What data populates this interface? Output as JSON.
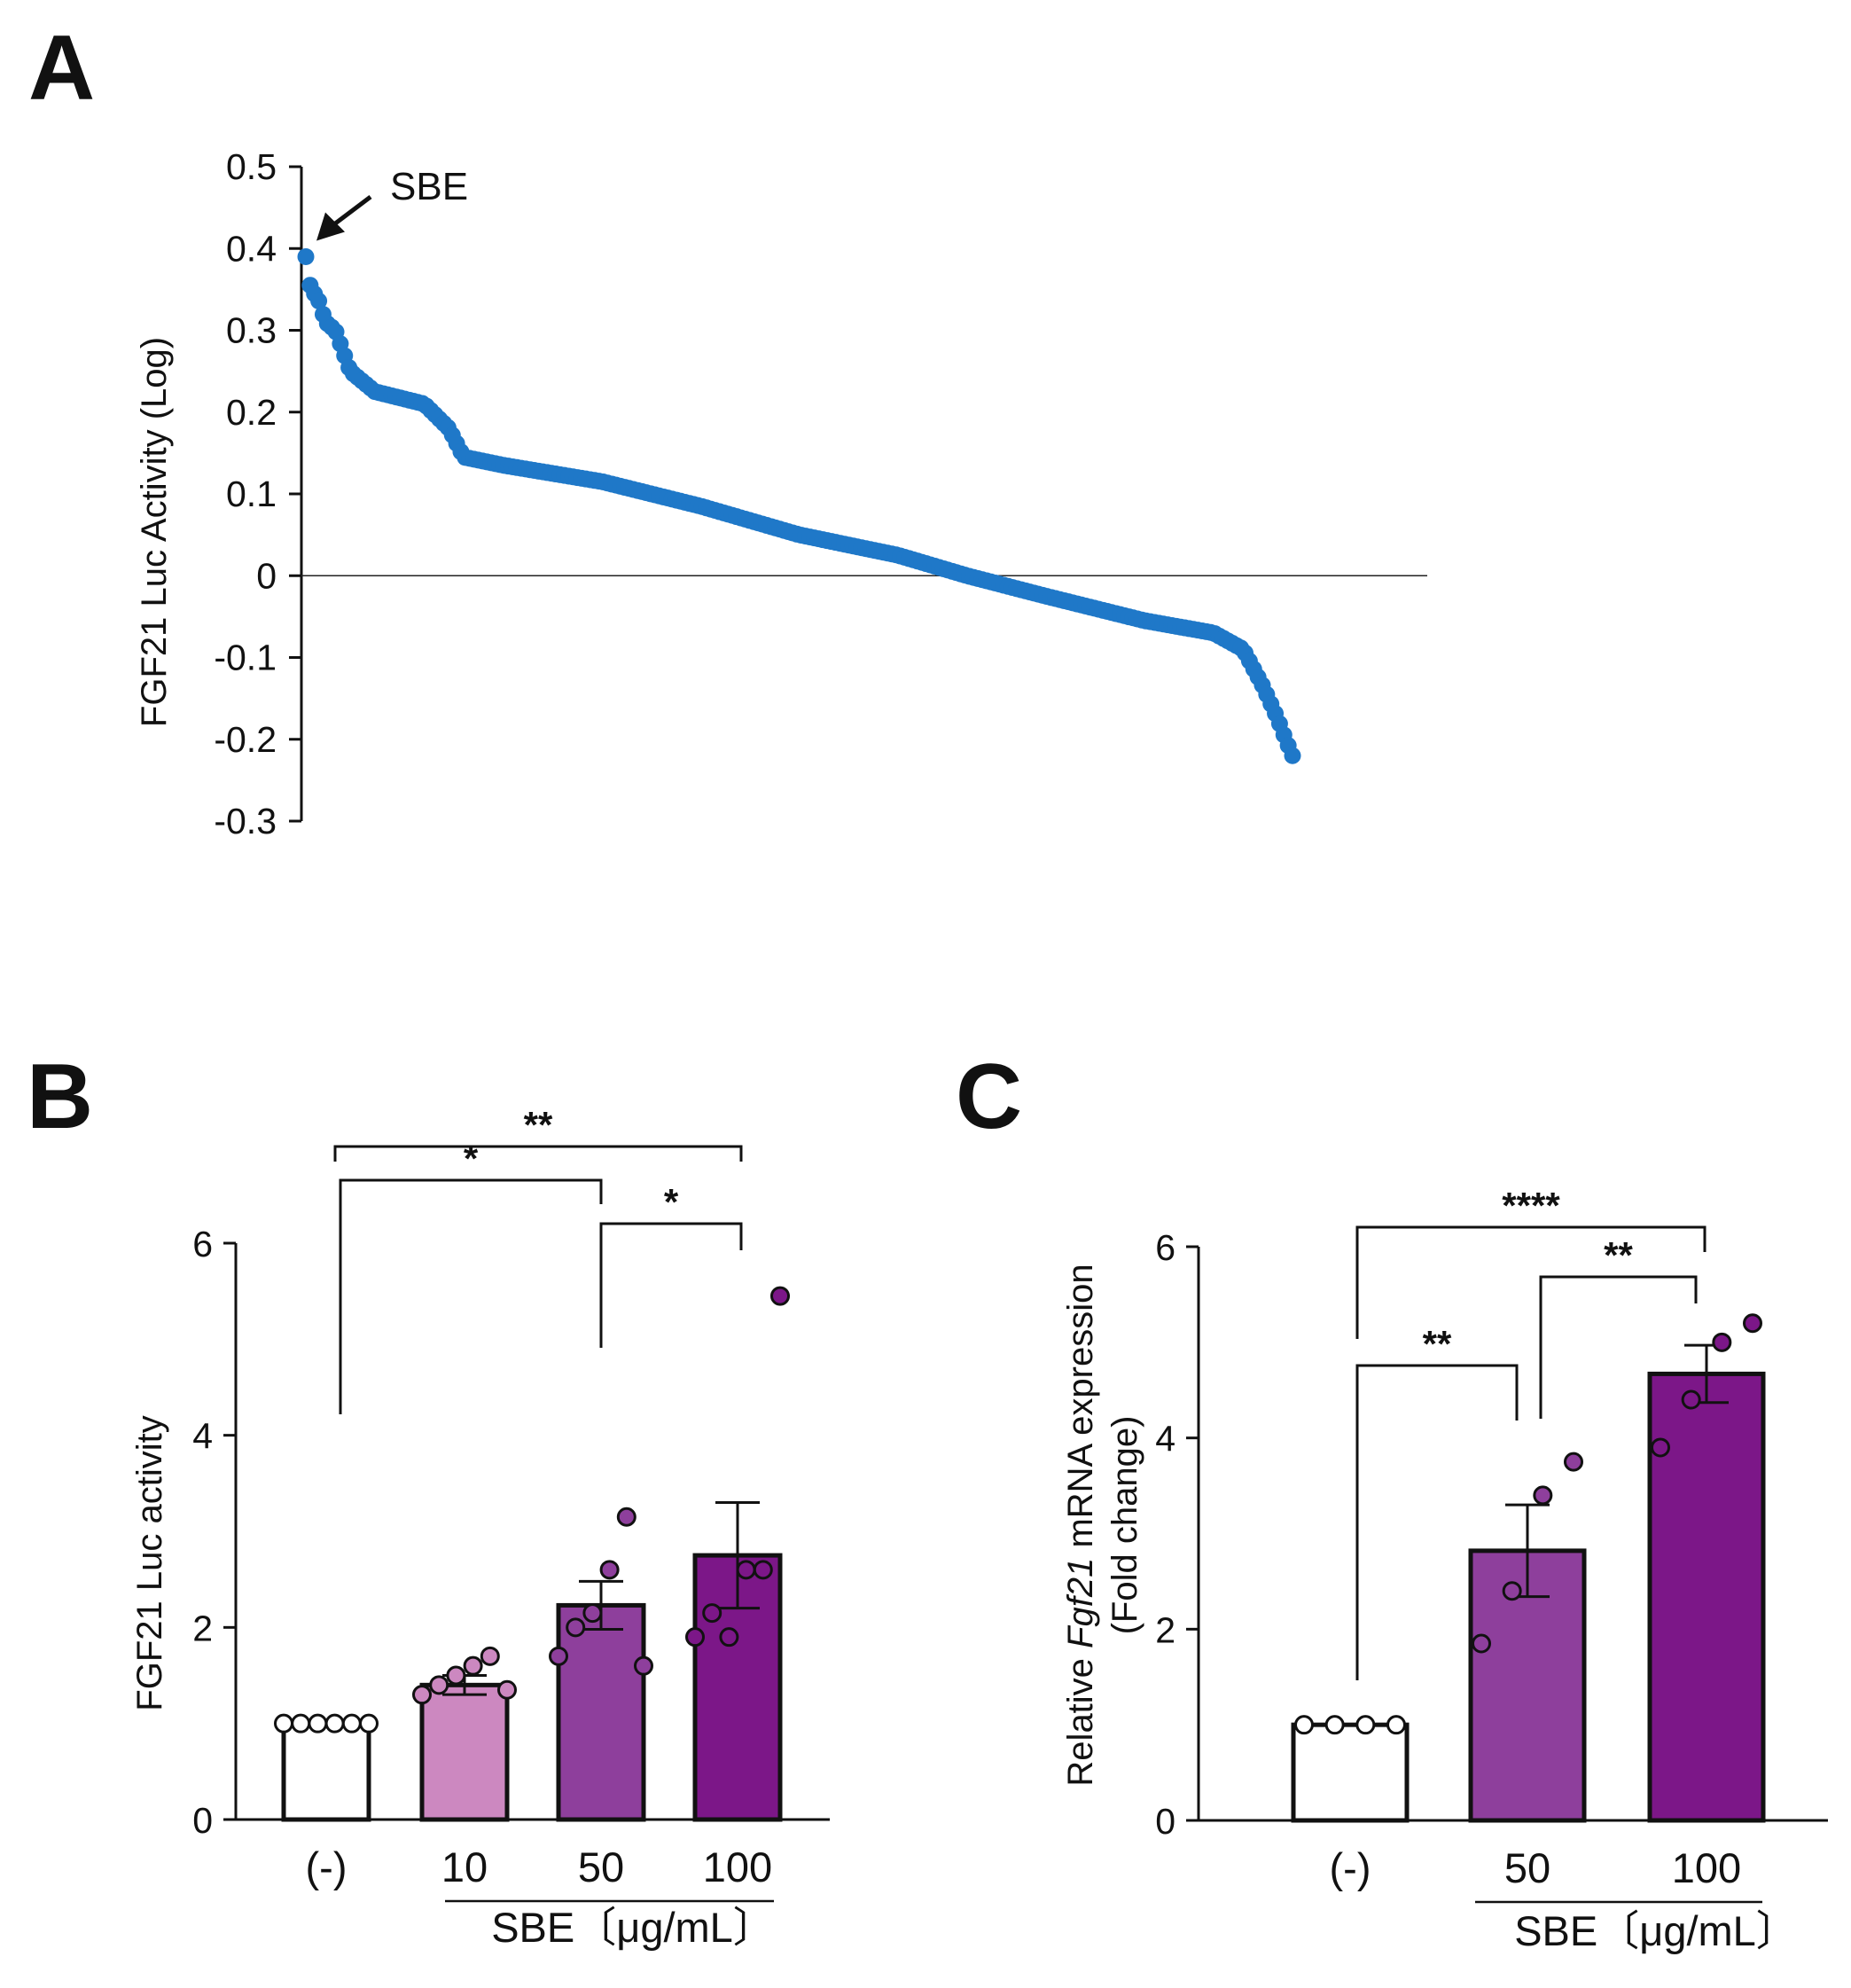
{
  "colors": {
    "dot_blue": "#1f78c8",
    "bar_white": "#ffffff",
    "bar_10": "#cc88c0",
    "bar_50": "#8e3f9c",
    "bar_100": "#7c1788",
    "outline": "#111111"
  },
  "chart_data": [
    {
      "panel": "A",
      "type": "scatter",
      "ylabel": "FGF21 Luc Activity (Log)",
      "ylim": [
        -0.3,
        0.5
      ],
      "yticks": [
        0.5,
        0.4,
        0.3,
        0.2,
        0.1,
        0,
        -0.1,
        -0.2,
        -0.3
      ],
      "ytick_labels": [
        "0.5",
        "0.4",
        "0.3",
        "0.2",
        "0.1",
        "0",
        "-0.1",
        "-0.2",
        "-0.3"
      ],
      "point_count": 230,
      "sorted_profile": [
        [
          0,
          0.39
        ],
        [
          0.005,
          0.35
        ],
        [
          0.012,
          0.34
        ],
        [
          0.02,
          0.31
        ],
        [
          0.03,
          0.3
        ],
        [
          0.045,
          0.25
        ],
        [
          0.07,
          0.225
        ],
        [
          0.12,
          0.21
        ],
        [
          0.145,
          0.18
        ],
        [
          0.16,
          0.145
        ],
        [
          0.2,
          0.135
        ],
        [
          0.3,
          0.115
        ],
        [
          0.4,
          0.085
        ],
        [
          0.5,
          0.05
        ],
        [
          0.6,
          0.025
        ],
        [
          0.67,
          0.0
        ],
        [
          0.75,
          -0.025
        ],
        [
          0.85,
          -0.055
        ],
        [
          0.92,
          -0.07
        ],
        [
          0.95,
          -0.09
        ],
        [
          0.97,
          -0.135
        ],
        [
          0.985,
          -0.175
        ],
        [
          0.993,
          -0.2
        ],
        [
          1.0,
          -0.22
        ]
      ],
      "annotation": {
        "text": "SBE",
        "points_to_value": 0.39
      }
    },
    {
      "panel": "B",
      "type": "bar",
      "ylabel": "FGF21 Luc activity",
      "ylim": [
        0,
        6
      ],
      "yticks": [
        0,
        2,
        4,
        6
      ],
      "ytick_labels": [
        "0",
        "2",
        "4",
        "6"
      ],
      "categories": [
        "(-)",
        "10",
        "50",
        "100"
      ],
      "group_label": "SBE〔μg/mL〕",
      "values": [
        1.0,
        1.4,
        2.23,
        2.75
      ],
      "sem": [
        0,
        0.1,
        0.25,
        0.55
      ],
      "points": [
        [
          1.0,
          1.0,
          1.0,
          1.0,
          1.0,
          1.0
        ],
        [
          1.3,
          1.4,
          1.5,
          1.6,
          1.7,
          1.35
        ],
        [
          1.7,
          2.0,
          2.15,
          2.6,
          3.15,
          1.6
        ],
        [
          1.9,
          2.15,
          1.9,
          2.6,
          2.6,
          5.45
        ]
      ],
      "significance": [
        {
          "from": 0,
          "to": 2,
          "label": "*"
        },
        {
          "from": 0,
          "to": 3,
          "label": "**"
        },
        {
          "from": 2,
          "to": 3,
          "label": "*"
        }
      ]
    },
    {
      "panel": "C",
      "type": "bar",
      "ylabel_prefix": "Relative ",
      "ylabel_gene": "Fgf21",
      "ylabel_suffix": " mRNA expression",
      "ylabel_line2": "(Fold change)",
      "ylim": [
        0,
        6
      ],
      "yticks": [
        0,
        2,
        4,
        6
      ],
      "ytick_labels": [
        "0",
        "2",
        "4",
        "6"
      ],
      "categories": [
        "(-)",
        "50",
        "100"
      ],
      "group_label": "SBE〔μg/mL〕",
      "values": [
        1.0,
        2.82,
        4.67
      ],
      "sem": [
        0,
        0.48,
        0.3
      ],
      "points": [
        [
          1.0,
          1.0,
          1.0,
          1.0
        ],
        [
          1.85,
          2.4,
          3.4,
          3.75
        ],
        [
          3.9,
          4.4,
          5.0,
          5.2
        ]
      ],
      "significance": [
        {
          "from": 0,
          "to": 1,
          "label": "**"
        },
        {
          "from": 0,
          "to": 2,
          "label": "****"
        },
        {
          "from": 1,
          "to": 2,
          "label": "**"
        }
      ]
    }
  ],
  "panel_labels": [
    "A",
    "B",
    "C"
  ]
}
